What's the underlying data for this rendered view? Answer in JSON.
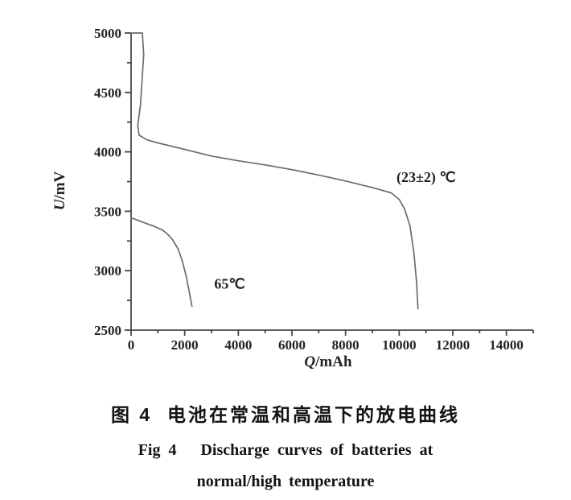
{
  "figure": {
    "number_zh": "图 4",
    "caption_zh": "图 4  电池在常温和高温下的放电曲线",
    "caption_en_line1": "Fig 4   Discharge curves of batteries at",
    "caption_en_line2": "normal/high temperature"
  },
  "chart_data": {
    "type": "line",
    "title": "",
    "xlabel": "Q/mAh",
    "ylabel": "U/mV",
    "xlim": [
      0,
      15000
    ],
    "ylim": [
      2500,
      5000
    ],
    "x_ticks_major": [
      0,
      2000,
      4000,
      6000,
      8000,
      10000,
      12000,
      14000
    ],
    "x_ticks_minor": [
      1000,
      3000,
      5000,
      7000,
      9000,
      11000,
      13000,
      15000
    ],
    "y_ticks_major": [
      2500,
      3000,
      3500,
      4000,
      4500,
      5000
    ],
    "y_ticks_minor": [
      2750,
      3250,
      3750,
      4250,
      4750
    ],
    "grid": false,
    "legend_position": "inline-annotations",
    "series": [
      {
        "name": "(23±2) ℃",
        "label_text": "(23±2) ℃",
        "label_at": [
          9900,
          3745
        ],
        "points": [
          [
            0,
            5000
          ],
          [
            420,
            5000
          ],
          [
            470,
            4820
          ],
          [
            350,
            4400
          ],
          [
            250,
            4220
          ],
          [
            300,
            4140
          ],
          [
            600,
            4100
          ],
          [
            1000,
            4075
          ],
          [
            2000,
            4020
          ],
          [
            3000,
            3965
          ],
          [
            4000,
            3925
          ],
          [
            5000,
            3890
          ],
          [
            6000,
            3850
          ],
          [
            7000,
            3805
          ],
          [
            8000,
            3755
          ],
          [
            9000,
            3700
          ],
          [
            9700,
            3655
          ],
          [
            10000,
            3600
          ],
          [
            10200,
            3520
          ],
          [
            10400,
            3380
          ],
          [
            10550,
            3150
          ],
          [
            10650,
            2900
          ],
          [
            10700,
            2680
          ]
        ]
      },
      {
        "name": "65℃",
        "label_text": "65℃",
        "label_at": [
          3100,
          2850
        ],
        "points": [
          [
            0,
            3445
          ],
          [
            300,
            3420
          ],
          [
            600,
            3395
          ],
          [
            900,
            3370
          ],
          [
            1150,
            3345
          ],
          [
            1350,
            3310
          ],
          [
            1550,
            3260
          ],
          [
            1750,
            3185
          ],
          [
            1900,
            3090
          ],
          [
            2050,
            2960
          ],
          [
            2180,
            2810
          ],
          [
            2270,
            2700
          ]
        ]
      }
    ],
    "colors": {
      "curve": "#6b6b6b",
      "axis": "#474747",
      "text": "#232323"
    }
  }
}
